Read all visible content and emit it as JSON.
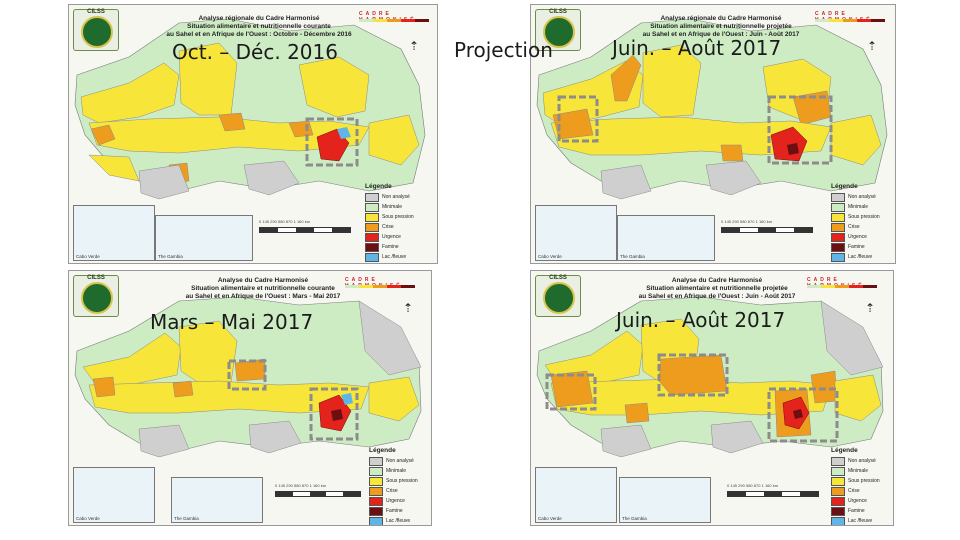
{
  "captions": {
    "top_left": "Oct. – Déc. 2016",
    "projection": "Projection",
    "top_right": "Juin. – Août 2017",
    "bottom_left": "Mars – Mai 2017",
    "bottom_right": "Juin. – Août 2017"
  },
  "panels": {
    "top_left": {
      "logo": "CILSS",
      "title_lines": [
        "Analyse régionale du Cadre Harmonisé",
        "Situation alimentaire et nutritionnelle courante",
        "au Sahel et en Afrique de l'Ouest : Octobre - Décembre 2016"
      ],
      "brand": "CADRE HARMONISÉ"
    },
    "top_right": {
      "logo": "CILSS",
      "title_lines": [
        "Analyse régionale du Cadre Harmonisé",
        "Situation alimentaire et nutritionnelle projetée",
        "au Sahel et en Afrique de l'Ouest : Juin - Août 2017"
      ],
      "brand": "CADRE HARMONISÉ"
    },
    "bottom_left": {
      "logo": "CILSS",
      "title_lines": [
        "Analyse du Cadre Harmonisé",
        "Situation alimentaire et nutritionnelle courante",
        "au Sahel et en Afrique de l'Ouest : Mars - Mai 2017"
      ],
      "brand": "CADRE HARMONISÉ"
    },
    "bottom_right": {
      "logo": "CILSS",
      "title_lines": [
        "Analyse du Cadre Harmonisé",
        "Situation alimentaire et nutritionnelle projetée",
        "au Sahel et en Afrique de l'Ouest : Juin - Août 2017"
      ],
      "brand": "CADRE HARMONISÉ"
    }
  },
  "legend": {
    "title": "Légende",
    "items": [
      {
        "label": "Non analysé",
        "color": "#cfcfcf"
      },
      {
        "label": "Minimale",
        "color": "#cdecc4"
      },
      {
        "label": "Sous pression",
        "color": "#f7e53a"
      },
      {
        "label": "Crise",
        "color": "#ee9c1e"
      },
      {
        "label": "Urgence",
        "color": "#e3231c"
      },
      {
        "label": "Famine",
        "color": "#6b0f12"
      },
      {
        "label": "Lac /fleuve",
        "color": "#5fb6e6"
      }
    ]
  },
  "insets": {
    "cabo_verde": "Cabo Verde",
    "gambia": "The Gambia"
  },
  "scale_ticks": [
    "0",
    "145",
    "290",
    "580",
    "870",
    "1 160"
  ],
  "scale_unit": "km",
  "north_symbol": "⇡",
  "colors": {
    "minimal": "#cdecc4",
    "stressed": "#f7e53a",
    "crisis": "#ee9c1e",
    "emergency": "#e3231c",
    "not_analysed": "#cfcfcf",
    "water": "#5fb6e6",
    "sea": "#f7f7f2",
    "hotspot_box": "#8c8c8c"
  }
}
